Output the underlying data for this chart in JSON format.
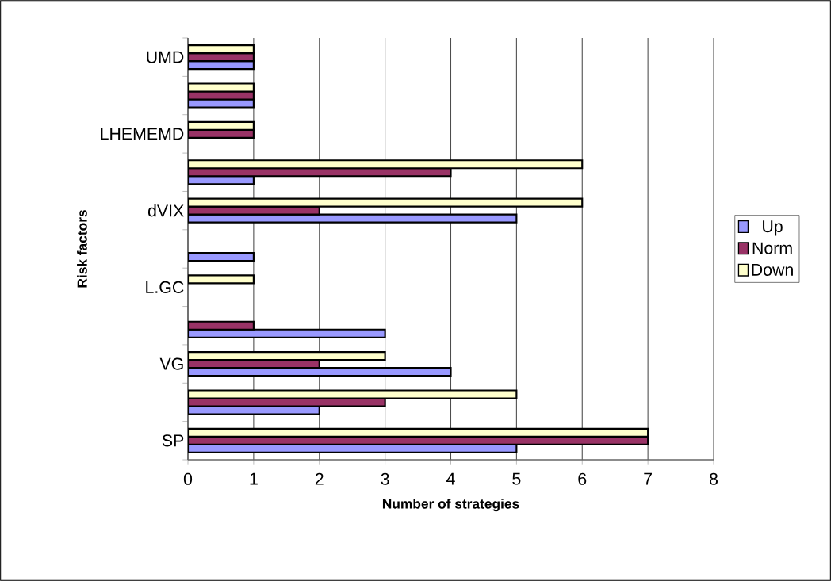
{
  "chart_data": {
    "type": "bar",
    "orientation": "horizontal",
    "xlabel": "Number of strategies",
    "ylabel": "Risk factors",
    "categories": [
      "UMD",
      null,
      "LHEMEMD",
      null,
      "dVIX",
      null,
      "L.GC",
      null,
      "VG",
      null,
      "SP"
    ],
    "series": [
      {
        "name": "Up",
        "color": "#9999ff",
        "values": [
          1,
          1,
          null,
          1,
          5,
          1,
          null,
          3,
          4,
          2,
          5
        ]
      },
      {
        "name": "Norm",
        "color": "#993366",
        "values": [
          1,
          1,
          1,
          4,
          2,
          null,
          null,
          1,
          2,
          3,
          7
        ]
      },
      {
        "name": "Down",
        "color": "#ffffcc",
        "values": [
          1,
          1,
          1,
          6,
          6,
          null,
          1,
          null,
          3,
          5,
          7
        ]
      }
    ],
    "xlim": [
      0,
      8
    ],
    "xticks": [
      0,
      1,
      2,
      3,
      4,
      5,
      6,
      7,
      8
    ],
    "grid": "x",
    "legend": "right"
  }
}
